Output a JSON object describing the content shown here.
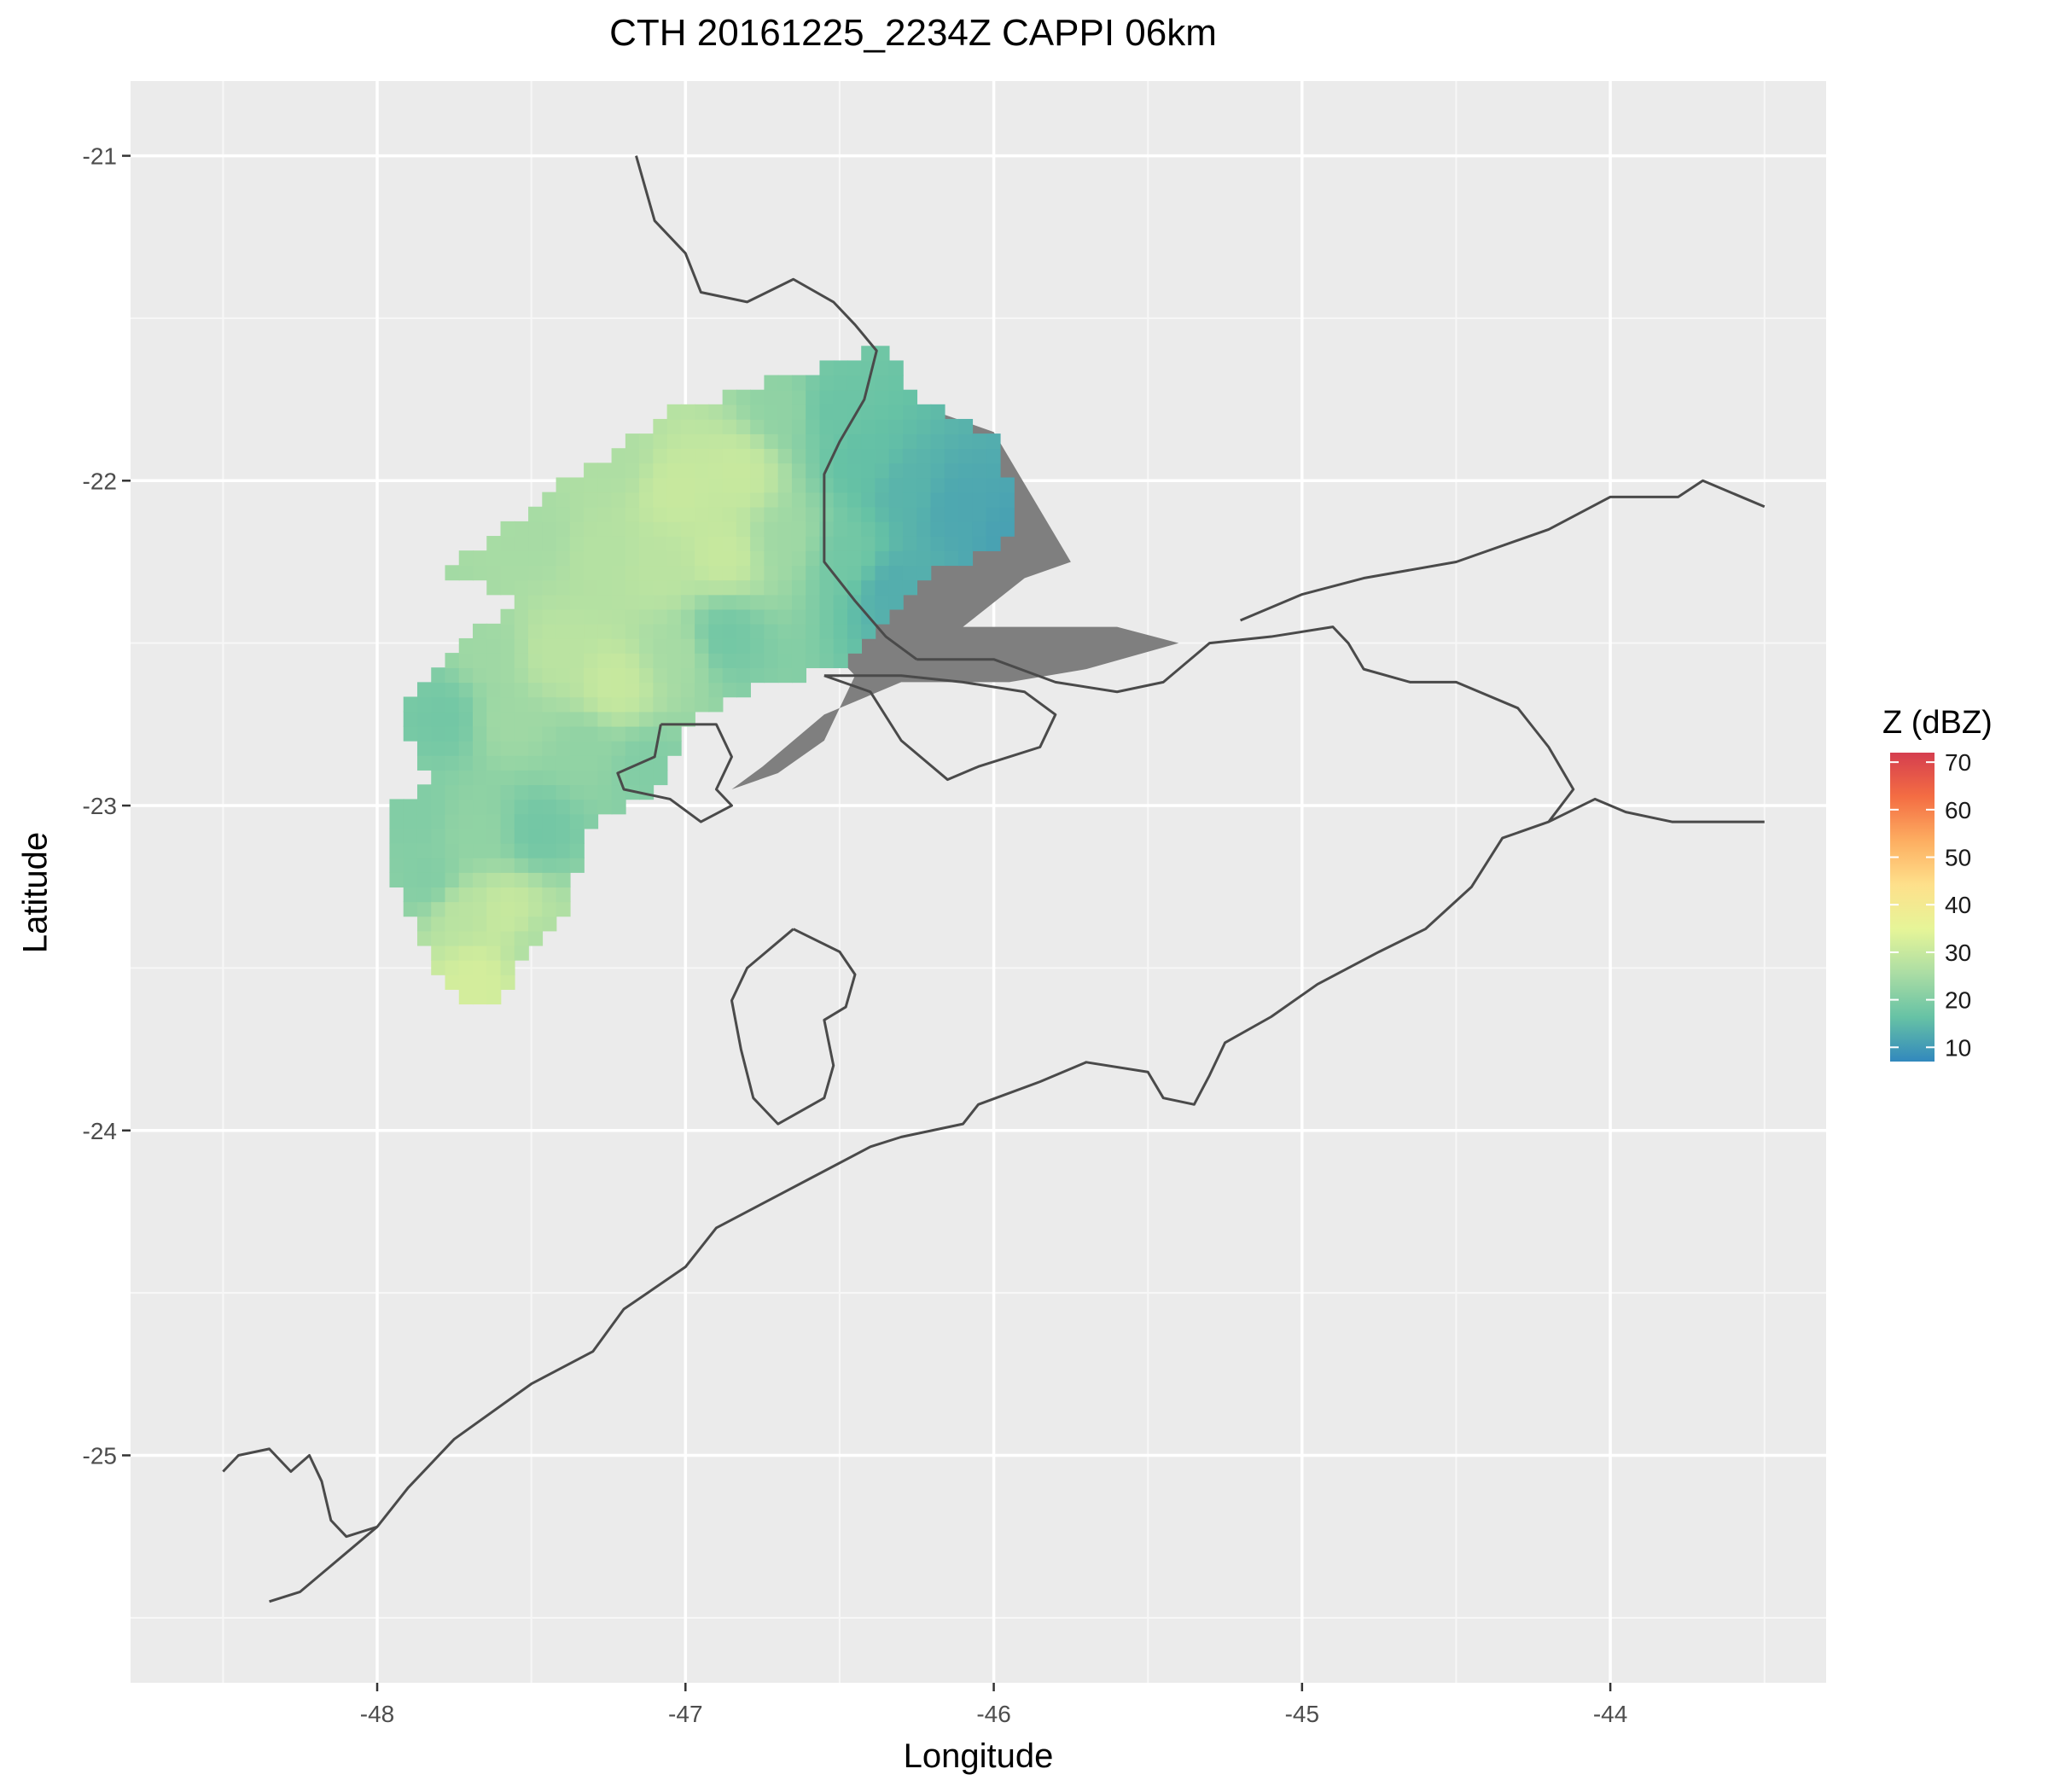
{
  "title": "CTH 20161225_2234Z  CAPPI 06km",
  "x_axis": {
    "label": "Longitude",
    "range": [
      -48.8,
      -43.3
    ],
    "ticks": [
      -48,
      -47,
      -46,
      -45,
      -44
    ],
    "tick_labels": [
      "-48",
      "-47",
      "-46",
      "-45",
      "-44"
    ],
    "minor_ticks": [
      -48.5,
      -47.5,
      -46.5,
      -45.5,
      -44.5,
      -43.5
    ]
  },
  "y_axis": {
    "label": "Latitude",
    "range": [
      -25.7,
      -20.77
    ],
    "ticks": [
      -25,
      -24,
      -23,
      -22,
      -21
    ],
    "tick_labels": [
      "-25",
      "-24",
      "-23",
      "-22",
      "-21"
    ],
    "minor_ticks": [
      -25.5,
      -24.5,
      -23.5,
      -22.5,
      -21.5
    ]
  },
  "legend": {
    "title": "Z (dBZ)",
    "range": [
      7,
      72
    ],
    "ticks": [
      10,
      20,
      30,
      40,
      50,
      60,
      70
    ],
    "tick_labels": [
      "10",
      "20",
      "30",
      "40",
      "50",
      "60",
      "70"
    ],
    "colors": [
      "#3288bd",
      "#66c2a5",
      "#abdda4",
      "#e6f598",
      "#fee08b",
      "#fdae61",
      "#f46d43",
      "#d53e4f"
    ]
  },
  "colors": {
    "panel": "#ebebeb",
    "grid_major": "#ffffff",
    "grid_minor": "#f7f7f7",
    "coastline": "#4a4a4a",
    "clutter": "#7f7f7f"
  },
  "map_data": {
    "state_border_sp_mg": [
      [
        -47.16,
        -21.0
      ],
      [
        -47.1,
        -21.2
      ],
      [
        -47.0,
        -21.3
      ],
      [
        -46.95,
        -21.42
      ],
      [
        -46.8,
        -21.45
      ],
      [
        -46.65,
        -21.38
      ],
      [
        -46.52,
        -21.45
      ],
      [
        -46.45,
        -21.52
      ],
      [
        -46.38,
        -21.6
      ],
      [
        -46.42,
        -21.75
      ],
      [
        -46.5,
        -21.88
      ],
      [
        -46.55,
        -21.98
      ],
      [
        -46.55,
        -22.1
      ],
      [
        -46.55,
        -22.25
      ],
      [
        -46.45,
        -22.37
      ],
      [
        -46.35,
        -22.48
      ],
      [
        -46.25,
        -22.55
      ]
    ],
    "state_border_sp_mg_rj": [
      [
        -46.25,
        -22.55
      ],
      [
        -46.0,
        -22.55
      ],
      [
        -45.8,
        -22.62
      ],
      [
        -45.6,
        -22.65
      ],
      [
        -45.45,
        -22.62
      ],
      [
        -45.3,
        -22.5
      ],
      [
        -45.1,
        -22.48
      ],
      [
        -44.9,
        -22.45
      ],
      [
        -44.85,
        -22.5
      ],
      [
        -44.8,
        -22.58
      ],
      [
        -44.65,
        -22.62
      ],
      [
        -44.5,
        -22.62
      ],
      [
        -44.3,
        -22.7
      ],
      [
        -44.2,
        -22.82
      ],
      [
        -44.12,
        -22.95
      ],
      [
        -44.2,
        -23.05
      ]
    ],
    "state_border_mg_rj_north": [
      [
        -45.2,
        -22.43
      ],
      [
        -45.0,
        -22.35
      ],
      [
        -44.8,
        -22.3
      ],
      [
        -44.5,
        -22.25
      ],
      [
        -44.2,
        -22.15
      ],
      [
        -44.0,
        -22.05
      ],
      [
        -43.78,
        -22.05
      ],
      [
        -43.7,
        -22.0
      ],
      [
        -43.5,
        -22.08
      ]
    ],
    "coastline": [
      [
        -48.35,
        -25.45
      ],
      [
        -48.25,
        -25.42
      ],
      [
        -48.1,
        -25.3
      ],
      [
        -48.0,
        -25.22
      ],
      [
        -47.9,
        -25.1
      ],
      [
        -47.75,
        -24.95
      ],
      [
        -47.5,
        -24.78
      ],
      [
        -47.3,
        -24.68
      ],
      [
        -47.2,
        -24.55
      ],
      [
        -47.0,
        -24.42
      ],
      [
        -46.9,
        -24.3
      ],
      [
        -46.6,
        -24.15
      ],
      [
        -46.4,
        -24.05
      ],
      [
        -46.3,
        -24.02
      ],
      [
        -46.1,
        -23.98
      ],
      [
        -46.05,
        -23.92
      ],
      [
        -45.85,
        -23.85
      ],
      [
        -45.7,
        -23.79
      ],
      [
        -45.5,
        -23.82
      ],
      [
        -45.45,
        -23.9
      ],
      [
        -45.35,
        -23.92
      ],
      [
        -45.3,
        -23.83
      ],
      [
        -45.25,
        -23.73
      ],
      [
        -45.1,
        -23.65
      ],
      [
        -44.95,
        -23.55
      ],
      [
        -44.75,
        -23.45
      ],
      [
        -44.6,
        -23.38
      ],
      [
        -44.45,
        -23.25
      ],
      [
        -44.35,
        -23.1
      ],
      [
        -44.2,
        -23.05
      ],
      [
        -44.05,
        -22.98
      ],
      [
        -43.95,
        -23.02
      ],
      [
        -43.8,
        -23.05
      ],
      [
        -43.7,
        -23.05
      ],
      [
        -43.5,
        -23.05
      ]
    ],
    "coastline_south": [
      [
        -48.5,
        -25.05
      ],
      [
        -48.45,
        -25.0
      ],
      [
        -48.35,
        -24.98
      ],
      [
        -48.28,
        -25.05
      ],
      [
        -48.22,
        -25.0
      ],
      [
        -48.18,
        -25.08
      ],
      [
        -48.15,
        -25.2
      ],
      [
        -48.1,
        -25.25
      ],
      [
        -48.0,
        -25.22
      ]
    ],
    "metro_outline": [
      [
        -47.08,
        -22.75
      ],
      [
        -46.9,
        -22.75
      ],
      [
        -46.85,
        -22.85
      ],
      [
        -46.9,
        -22.95
      ],
      [
        -46.85,
        -23.0
      ],
      [
        -46.95,
        -23.05
      ],
      [
        -47.05,
        -22.98
      ],
      [
        -47.2,
        -22.95
      ],
      [
        -47.22,
        -22.9
      ],
      [
        -47.1,
        -22.85
      ],
      [
        -47.08,
        -22.75
      ]
    ],
    "interior_outline": [
      [
        -46.65,
        -23.38
      ],
      [
        -46.5,
        -23.45
      ],
      [
        -46.45,
        -23.52
      ],
      [
        -46.48,
        -23.62
      ],
      [
        -46.55,
        -23.66
      ],
      [
        -46.52,
        -23.8
      ],
      [
        -46.55,
        -23.9
      ],
      [
        -46.7,
        -23.98
      ],
      [
        -46.78,
        -23.9
      ],
      [
        -46.82,
        -23.75
      ],
      [
        -46.85,
        -23.6
      ],
      [
        -46.8,
        -23.5
      ],
      [
        -46.7,
        -23.42
      ],
      [
        -46.65,
        -23.38
      ]
    ],
    "valley_outline": [
      [
        -46.55,
        -22.6
      ],
      [
        -46.4,
        -22.65
      ],
      [
        -46.3,
        -22.8
      ],
      [
        -46.15,
        -22.92
      ],
      [
        -46.05,
        -22.88
      ],
      [
        -45.95,
        -22.85
      ],
      [
        -45.85,
        -22.82
      ],
      [
        -45.8,
        -22.72
      ],
      [
        -45.9,
        -22.65
      ],
      [
        -46.1,
        -22.62
      ],
      [
        -46.3,
        -22.6
      ],
      [
        -46.55,
        -22.6
      ]
    ],
    "radar_cells": [
      {
        "lon": -47.25,
        "lat": -21.95,
        "z": 26
      },
      {
        "lon": -47.05,
        "lat": -22.05,
        "z": 30
      },
      {
        "lon": -46.85,
        "lat": -22.0,
        "z": 30
      },
      {
        "lon": -46.7,
        "lat": -21.8,
        "z": 22
      },
      {
        "lon": -46.55,
        "lat": -21.8,
        "z": 17
      },
      {
        "lon": -46.45,
        "lat": -21.95,
        "z": 16
      },
      {
        "lon": -46.3,
        "lat": -22.05,
        "z": 14
      },
      {
        "lon": -46.15,
        "lat": -22.1,
        "z": 12
      },
      {
        "lon": -45.95,
        "lat": -22.2,
        "z": 11
      },
      {
        "lon": -47.5,
        "lat": -22.2,
        "z": 25
      },
      {
        "lon": -47.3,
        "lat": -22.25,
        "z": 27
      },
      {
        "lon": -47.1,
        "lat": -22.3,
        "z": 28
      },
      {
        "lon": -46.9,
        "lat": -22.25,
        "z": 30
      },
      {
        "lon": -46.7,
        "lat": -22.2,
        "z": 24
      },
      {
        "lon": -46.5,
        "lat": -22.25,
        "z": 18
      },
      {
        "lon": -46.35,
        "lat": -22.35,
        "z": 13
      },
      {
        "lon": -47.65,
        "lat": -22.55,
        "z": 24
      },
      {
        "lon": -47.45,
        "lat": -22.55,
        "z": 28
      },
      {
        "lon": -47.25,
        "lat": -22.65,
        "z": 30
      },
      {
        "lon": -47.05,
        "lat": -22.55,
        "z": 25
      },
      {
        "lon": -46.9,
        "lat": -22.5,
        "z": 18
      },
      {
        "lon": -47.8,
        "lat": -22.75,
        "z": 18
      },
      {
        "lon": -47.6,
        "lat": -22.75,
        "z": 24
      },
      {
        "lon": -47.35,
        "lat": -22.85,
        "z": 22
      },
      {
        "lon": -47.15,
        "lat": -22.9,
        "z": 20
      },
      {
        "lon": -47.9,
        "lat": -23.05,
        "z": 20
      },
      {
        "lon": -47.7,
        "lat": -23.1,
        "z": 22
      },
      {
        "lon": -47.5,
        "lat": -23.1,
        "z": 18
      },
      {
        "lon": -47.75,
        "lat": -23.35,
        "z": 28
      },
      {
        "lon": -47.6,
        "lat": -23.35,
        "z": 30
      },
      {
        "lon": -47.5,
        "lat": -23.45,
        "z": 26
      },
      {
        "lon": -47.7,
        "lat": -23.55,
        "z": 32
      },
      {
        "lon": -47.85,
        "lat": -23.25,
        "z": 20
      }
    ]
  }
}
